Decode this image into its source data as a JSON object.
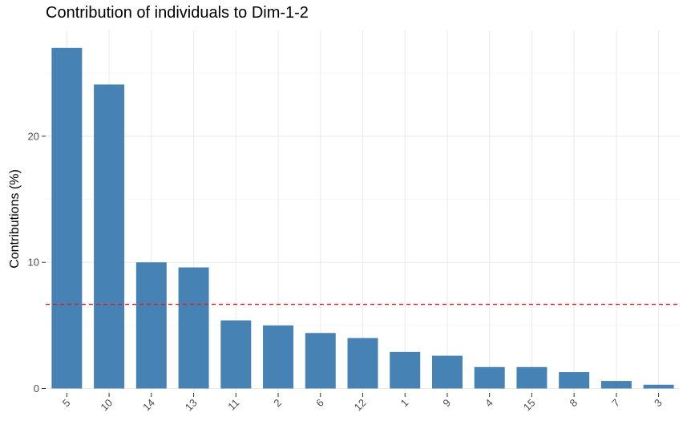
{
  "chart_data": {
    "type": "bar",
    "title": "Contribution of individuals to Dim-1-2",
    "xlabel": "",
    "ylabel": "Contributions (%)",
    "categories": [
      "5",
      "10",
      "14",
      "13",
      "11",
      "2",
      "6",
      "12",
      "1",
      "9",
      "4",
      "15",
      "8",
      "7",
      "3"
    ],
    "values": [
      27.0,
      24.1,
      10.0,
      9.6,
      5.4,
      5.0,
      4.4,
      4.0,
      2.9,
      2.6,
      1.7,
      1.7,
      1.3,
      0.6,
      0.3
    ],
    "ylim": [
      0,
      28.5
    ],
    "yticks": [
      0,
      10,
      20
    ],
    "reference_line": {
      "value": 6.67,
      "color": "#e41a1c",
      "style": "dashed"
    },
    "bar_color": "#4682b4",
    "grid": true,
    "legend": "none"
  }
}
